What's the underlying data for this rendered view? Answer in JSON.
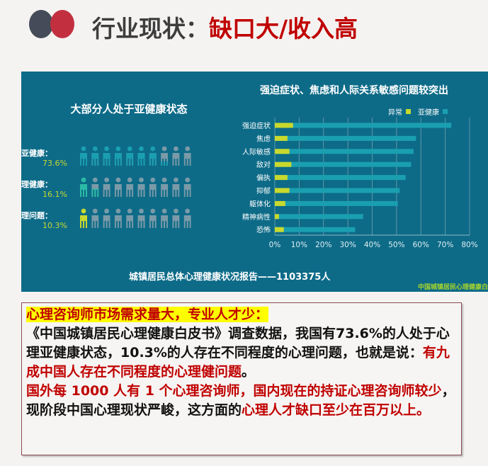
{
  "header": {
    "title_prefix": "行业现状：",
    "title_highlight": "缺口大/收入高"
  },
  "colors": {
    "panel_bg": "#0d6b88",
    "abnormal": "#c8d92e",
    "subhealth": "#1a9fb0",
    "healthy": "#2bbba5",
    "inactive": "#7a9aa8",
    "accent_red": "#c00000"
  },
  "infographic": {
    "title": "大部分人处于亚健康状态",
    "rows": [
      {
        "label": "心理亚健康：",
        "pct_text": "73.6%",
        "value": 73.6,
        "color": "#1a9fb0"
      },
      {
        "label": "心理健康：",
        "pct_text": "16.1%",
        "value": 16.1,
        "color": "#2bbba5"
      },
      {
        "label": "心理问题：",
        "pct_text": "10.3%",
        "value": 10.3,
        "color": "#c8d92e"
      }
    ]
  },
  "chart_data": {
    "type": "bar",
    "orientation": "horizontal",
    "title": "强迫症状、焦虑和人际关系敏感问题较突出",
    "categories": [
      "强迫症状",
      "焦虑",
      "人际敏感",
      "敌对",
      "偏执",
      "抑郁",
      "躯体化",
      "精神病性",
      "恐怖"
    ],
    "series": [
      {
        "name": "异常",
        "values": [
          7.5,
          5.2,
          6,
          6.8,
          5.2,
          6,
          4.3,
          1.7,
          3.7
        ],
        "color": "#c8d92e"
      },
      {
        "name": "亚健康",
        "values": [
          72.5,
          58,
          57,
          56,
          53.7,
          51.3,
          50.5,
          36.3,
          33
        ],
        "color": "#1a9fb0"
      }
    ],
    "xlim": [
      0,
      80
    ],
    "xticks": [
      "0%",
      "10%",
      "20%",
      "30%",
      "40%",
      "50%",
      "60%",
      "70%",
      "80%"
    ],
    "grid": true,
    "legend": "top-right"
  },
  "footer": {
    "report": "城镇居民总体心理健康状况报告——1103375人",
    "watermark": "中国城镇居民心理健康白"
  },
  "textbox": {
    "heading": "心理咨询师市场需求量大，专业人才少：",
    "p1": "《中国城镇居民心理健康白皮书》调查数据，我国有73.6%的人处于心理亚健康状态，10.3%的人存在不同程度的心理问题，也就是说：",
    "p1_red": "有九成中国人存在不同程度的心理健问题",
    "p1_end": "。",
    "p2_red": "国外每 1000 人有 1 个心理咨询师，国内现在的持证心理咨询师较少",
    "p2": "，现阶段中国心理现状严峻，这方面的",
    "p2_red2": "心理人才缺口至少在百万以上。"
  }
}
